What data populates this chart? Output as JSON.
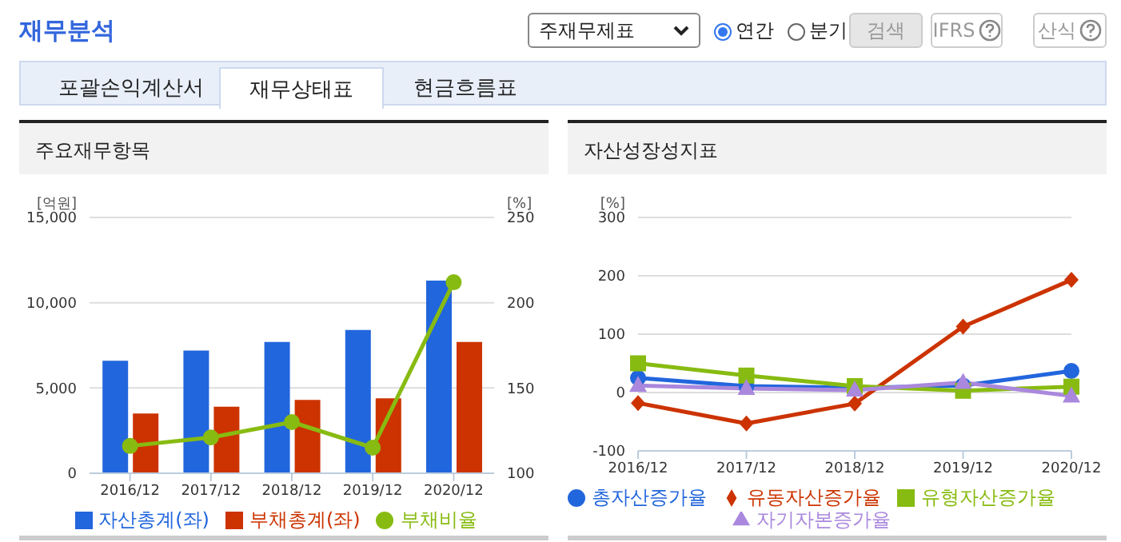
{
  "chart_data": [
    {
      "type": "bar",
      "title": "주요재무항목",
      "annotations": [
        "재무분석",
        "주재무제표",
        "연간",
        "분기",
        "검색",
        "IFRS",
        "산식",
        "포괄손익계산서",
        "재무상태표",
        "현금흐름표"
      ],
      "categories": [
        "2016/12",
        "2017/12",
        "2018/12",
        "2019/12",
        "2020/12"
      ],
      "series": [
        {
          "name": "자산총계(좌)",
          "color": "#2266dd",
          "values": [
            6600,
            7200,
            7700,
            8400,
            11300
          ]
        },
        {
          "name": "부채총계(좌)",
          "color": "#cc3300",
          "values": [
            3500,
            3900,
            4300,
            4400,
            7700
          ]
        },
        {
          "name": "부채비율",
          "type": "line",
          "axis": "y2",
          "color": "#88bb11",
          "marker": "circle",
          "values": [
            116,
            121,
            130,
            115,
            212
          ]
        }
      ],
      "ylabel": "[억원]",
      "y2label": "[%]",
      "ylim": [
        0,
        15000
      ],
      "yticks": [
        0,
        {
          "value": 5000,
          "label": "5,000"
        },
        {
          "value": 10000,
          "label": "10,000"
        },
        {
          "value": 15000,
          "label": "15,000"
        }
      ],
      "y2lim": [
        100,
        250
      ],
      "y2ticks": [
        100,
        150,
        200,
        250
      ],
      "grid": "y",
      "legend": "bottom"
    },
    {
      "type": "line",
      "title": "자산성장성지표",
      "categories": [
        "2016/12",
        "2017/12",
        "2018/12",
        "2019/12",
        "2020/12"
      ],
      "series": [
        {
          "name": "총자산증가율",
          "color": "#2266dd",
          "marker": "circle",
          "values": [
            25,
            11,
            8,
            12,
            37
          ]
        },
        {
          "name": "유동자산증가율",
          "color": "#cc3300",
          "marker": "diamond",
          "values": [
            -18,
            -53,
            -19,
            113,
            193
          ]
        },
        {
          "name": "유형자산증가율",
          "color": "#88bb11",
          "marker": "square",
          "values": [
            50,
            29,
            11,
            3,
            10
          ]
        },
        {
          "name": "자기자본증가율",
          "color": "#aa88dd",
          "marker": "triangle",
          "values": [
            12,
            7,
            4,
            17,
            -6
          ]
        }
      ],
      "ylabel": "[%]",
      "ylim": [
        -100,
        300
      ],
      "yticks": [
        -100,
        0,
        100,
        200,
        300
      ],
      "grid": "y",
      "legend": "bottom"
    }
  ]
}
